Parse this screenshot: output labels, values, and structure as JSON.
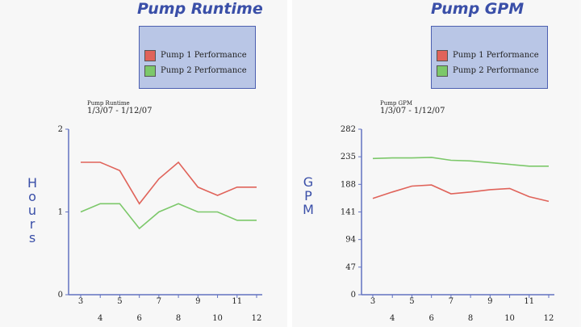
{
  "chart_data": [
    {
      "type": "line",
      "title": "Pump Runtime",
      "subtitle": "Pump Runtime",
      "date_range": "1/3/07 - 1/12/07",
      "ylabel": "Hours",
      "xlabel": "",
      "x": [
        3,
        4,
        5,
        6,
        7,
        8,
        9,
        10,
        11,
        12
      ],
      "ylim": [
        0,
        2
      ],
      "yticks": [
        "0",
        "1",
        "2"
      ],
      "series": [
        {
          "name": "Pump 1 Performance",
          "color": "#e0635a",
          "values": [
            1.6,
            1.6,
            1.5,
            1.1,
            1.4,
            1.6,
            1.3,
            1.2,
            1.3,
            1.3
          ]
        },
        {
          "name": "Pump 2 Performance",
          "color": "#7cc86a",
          "values": [
            1.0,
            1.1,
            1.1,
            0.8,
            1.0,
            1.1,
            1.0,
            1.0,
            0.9,
            0.9
          ]
        }
      ],
      "legend_position": "top-right"
    },
    {
      "type": "line",
      "title": "Pump GPM",
      "subtitle": "Pump GPM",
      "date_range": "1/3/07 - 1/12/07",
      "ylabel": "GPM",
      "xlabel": "",
      "x": [
        3,
        4,
        5,
        6,
        7,
        8,
        9,
        10,
        11,
        12
      ],
      "ylim": [
        0,
        282
      ],
      "yticks": [
        "0",
        "47",
        "94",
        "141",
        "188",
        "235",
        "282"
      ],
      "series": [
        {
          "name": "Pump 1 Performance",
          "color": "#e0635a",
          "values": [
            164,
            175,
            185,
            187,
            172,
            175,
            179,
            181,
            167,
            159
          ]
        },
        {
          "name": "Pump 2 Performance",
          "color": "#7cc86a",
          "values": [
            232,
            233,
            233,
            234,
            229,
            228,
            225,
            222,
            219,
            219
          ]
        }
      ],
      "legend_position": "top-right"
    }
  ]
}
